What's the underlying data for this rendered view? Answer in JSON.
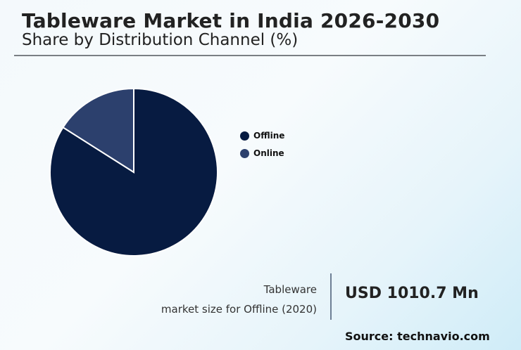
{
  "header": {
    "title": "Tableware Market in India 2026-2030",
    "subtitle": "Share by Distribution Channel (%)"
  },
  "legend": {
    "items": [
      {
        "label": "Offline",
        "color": "#071b41"
      },
      {
        "label": "Online",
        "color": "#2c406d"
      }
    ]
  },
  "kpi": {
    "label_line1": "Tableware",
    "label_line2": "market size for Offline (2020)",
    "value": "USD 1010.7 Mn"
  },
  "source": "Source: technavio.com",
  "chart_data": {
    "type": "pie",
    "title": "Tableware Market in India 2026-2030",
    "subtitle": "Share by Distribution Channel (%)",
    "categories": [
      "Offline",
      "Online"
    ],
    "values": [
      84,
      16
    ],
    "colors": [
      "#071b41",
      "#2c406d"
    ],
    "legend_position": "right",
    "annotation": "Tableware market size for Offline (2020): USD 1010.7 Mn"
  }
}
